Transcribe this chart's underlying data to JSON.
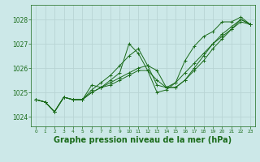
{
  "background_color": "#cce8e8",
  "grid_color": "#b8d4d4",
  "line_color": "#1a6b1a",
  "xlabel": "Graphe pression niveau de la mer (hPa)",
  "xlabel_fontsize": 7,
  "yticks": [
    1024,
    1025,
    1026,
    1027,
    1028
  ],
  "xticks": [
    0,
    1,
    2,
    3,
    4,
    5,
    6,
    7,
    8,
    9,
    10,
    11,
    12,
    13,
    14,
    15,
    16,
    17,
    18,
    19,
    20,
    21,
    22,
    23
  ],
  "ylim": [
    1023.6,
    1028.6
  ],
  "xlim": [
    -0.5,
    23.5
  ],
  "series": [
    [
      1024.7,
      1024.6,
      1024.2,
      1024.8,
      1024.7,
      1024.7,
      1025.3,
      1025.2,
      1025.5,
      1025.8,
      1027.0,
      1026.6,
      1025.9,
      1025.0,
      1025.1,
      1025.4,
      1026.3,
      1026.9,
      1027.3,
      1027.5,
      1027.9,
      1027.9,
      1028.1,
      1027.8
    ],
    [
      1024.7,
      1024.6,
      1024.2,
      1024.8,
      1024.7,
      1024.7,
      1025.1,
      1025.4,
      1025.7,
      1026.1,
      1026.5,
      1026.8,
      1026.1,
      1025.3,
      1025.2,
      1025.4,
      1025.8,
      1026.2,
      1026.6,
      1027.0,
      1027.3,
      1027.6,
      1027.9,
      1027.8
    ],
    [
      1024.7,
      1024.6,
      1024.2,
      1024.8,
      1024.7,
      1024.7,
      1025.0,
      1025.2,
      1025.4,
      1025.6,
      1025.8,
      1026.0,
      1026.1,
      1025.9,
      1025.2,
      1025.2,
      1025.5,
      1026.0,
      1026.5,
      1027.0,
      1027.4,
      1027.7,
      1028.0,
      1027.8
    ],
    [
      1024.7,
      1024.6,
      1024.2,
      1024.8,
      1024.7,
      1024.7,
      1025.0,
      1025.2,
      1025.3,
      1025.5,
      1025.7,
      1025.9,
      1025.9,
      1025.5,
      1025.2,
      1025.2,
      1025.5,
      1025.9,
      1026.3,
      1026.8,
      1027.2,
      1027.6,
      1028.0,
      1027.8
    ]
  ]
}
